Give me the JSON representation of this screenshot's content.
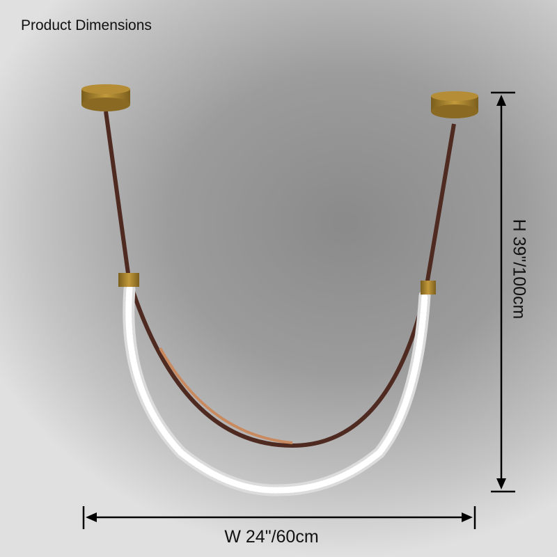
{
  "title": "Product Dimensions",
  "dimensions": {
    "height": "H 39\"/100cm",
    "width": "W 24\"/60cm"
  },
  "colors": {
    "canopy": "#a8842c",
    "strap": "#5a2e22",
    "strap_inner": "#c98a60",
    "led_tube": "#f4f4f4",
    "dimension_lines": "#000000"
  }
}
